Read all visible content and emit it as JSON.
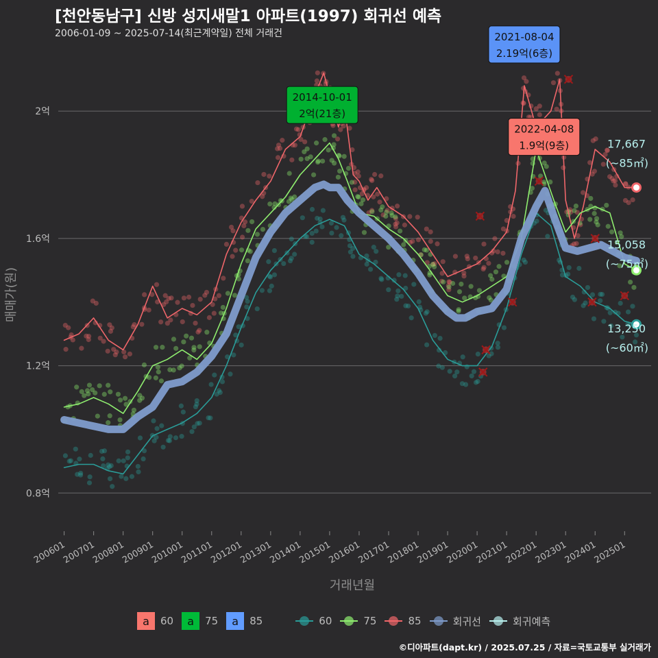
{
  "header": {
    "title": "[천안동남구] 신방 성지새말1 아파트(1997) 회귀선 예측",
    "subtitle": "2006-01-09 ~ 2025-07-14(최근계약일) 전체 거래건"
  },
  "footer": {
    "credit": "©디아파트(dapt.kr) / 2025.07.25 / 자료=국토교통부 실거래가"
  },
  "legend": {
    "label_keys": [
      {
        "key": "a",
        "label": "60",
        "color": "#f8766d"
      },
      {
        "key": "a",
        "label": "75",
        "color": "#00ba38"
      },
      {
        "key": "a",
        "label": "85",
        "color": "#619cff"
      }
    ],
    "line_keys": [
      {
        "label": "60",
        "color": "#2a9d99"
      },
      {
        "label": "75",
        "color": "#8fee6f"
      },
      {
        "label": "85",
        "color": "#f0666a"
      },
      {
        "label": "회귀선",
        "color": "#7f9ccc"
      },
      {
        "label": "회귀예측",
        "color": "#b8f0ee"
      }
    ]
  },
  "chart_data": {
    "type": "line",
    "xlabel": "거래년월",
    "ylabel": "매매가(원)",
    "x_range": [
      "2006-01",
      "2025-09"
    ],
    "ylim": [
      0.68,
      2.22
    ],
    "y_ticks": [
      {
        "value": 0.8,
        "label": "0.8억"
      },
      {
        "value": 1.2,
        "label": "1.2억"
      },
      {
        "value": 1.6,
        "label": "1.6억"
      },
      {
        "value": 2.0,
        "label": "2억"
      }
    ],
    "x_ticks": [
      "200601",
      "200701",
      "200801",
      "200901",
      "201001",
      "201101",
      "201201",
      "201301",
      "201401",
      "201501",
      "201601",
      "201701",
      "201801",
      "201901",
      "202001",
      "202101",
      "202201",
      "202301",
      "202401",
      "202501"
    ],
    "grid": true,
    "series": [
      {
        "name": "85",
        "color": "#f0666a",
        "x": [
          2006.0,
          2006.5,
          2007.0,
          2007.5,
          2008.0,
          2008.5,
          2009.0,
          2009.5,
          2010.0,
          2010.5,
          2011.0,
          2011.5,
          2012.0,
          2012.5,
          2013.0,
          2013.5,
          2014.0,
          2014.5,
          2014.8,
          2015.0,
          2015.3,
          2015.5,
          2015.8,
          2016.0,
          2016.3,
          2016.6,
          2017.0,
          2017.5,
          2018.0,
          2018.5,
          2019.0,
          2019.5,
          2020.0,
          2020.5,
          2021.0,
          2021.3,
          2021.6,
          2022.0,
          2022.5,
          2022.8,
          2023.0,
          2023.3,
          2023.6,
          2024.0,
          2024.5,
          2025.0,
          2025.4
        ],
        "y": [
          1.28,
          1.3,
          1.35,
          1.28,
          1.25,
          1.33,
          1.45,
          1.35,
          1.38,
          1.36,
          1.4,
          1.55,
          1.65,
          1.72,
          1.78,
          1.88,
          1.92,
          2.05,
          2.12,
          2.05,
          1.95,
          2.02,
          1.8,
          1.78,
          1.72,
          1.76,
          1.7,
          1.67,
          1.62,
          1.55,
          1.48,
          1.5,
          1.52,
          1.56,
          1.62,
          1.75,
          2.08,
          1.95,
          2.0,
          2.1,
          1.72,
          1.6,
          1.7,
          1.88,
          1.84,
          1.76,
          1.76
        ]
      },
      {
        "name": "75",
        "color": "#8fee6f",
        "x": [
          2006.0,
          2006.5,
          2007.0,
          2007.5,
          2008.0,
          2008.5,
          2009.0,
          2009.5,
          2010.0,
          2010.5,
          2011.0,
          2011.5,
          2012.0,
          2012.5,
          2013.0,
          2013.5,
          2014.0,
          2014.5,
          2015.0,
          2015.3,
          2015.6,
          2016.0,
          2016.5,
          2017.0,
          2017.5,
          2018.0,
          2018.4,
          2019.0,
          2019.5,
          2020.0,
          2020.5,
          2021.0,
          2021.5,
          2022.0,
          2022.3,
          2022.6,
          2023.0,
          2023.5,
          2024.0,
          2024.5,
          2025.0,
          2025.4
        ],
        "y": [
          1.07,
          1.08,
          1.1,
          1.08,
          1.05,
          1.12,
          1.2,
          1.22,
          1.25,
          1.22,
          1.27,
          1.38,
          1.52,
          1.63,
          1.68,
          1.73,
          1.8,
          1.85,
          1.9,
          1.85,
          1.78,
          1.68,
          1.67,
          1.63,
          1.6,
          1.55,
          1.5,
          1.42,
          1.4,
          1.42,
          1.45,
          1.48,
          1.6,
          1.88,
          1.8,
          1.72,
          1.62,
          1.68,
          1.7,
          1.68,
          1.52,
          1.5
        ]
      },
      {
        "name": "60",
        "color": "#2a9d99",
        "x": [
          2006.0,
          2006.5,
          2007.0,
          2007.5,
          2008.0,
          2008.5,
          2009.0,
          2009.5,
          2010.0,
          2010.5,
          2011.0,
          2011.5,
          2012.0,
          2012.5,
          2013.0,
          2013.5,
          2014.0,
          2014.5,
          2015.0,
          2015.5,
          2016.0,
          2016.5,
          2017.0,
          2017.5,
          2018.0,
          2018.5,
          2019.0,
          2019.5,
          2020.0,
          2020.5,
          2021.0,
          2021.5,
          2022.0,
          2022.5,
          2023.0,
          2023.5,
          2024.0,
          2024.5,
          2025.0,
          2025.4
        ],
        "y": [
          0.88,
          0.89,
          0.89,
          0.87,
          0.86,
          0.92,
          0.98,
          1.0,
          1.02,
          1.05,
          1.1,
          1.2,
          1.32,
          1.43,
          1.5,
          1.55,
          1.6,
          1.64,
          1.66,
          1.64,
          1.55,
          1.52,
          1.48,
          1.44,
          1.38,
          1.28,
          1.22,
          1.2,
          1.2,
          1.26,
          1.38,
          1.55,
          1.68,
          1.64,
          1.48,
          1.45,
          1.4,
          1.38,
          1.34,
          1.33
        ]
      },
      {
        "name": "회귀선",
        "color": "#7f9ccc",
        "x": [
          2006.0,
          2006.5,
          2007.0,
          2007.5,
          2008.0,
          2008.5,
          2009.0,
          2009.5,
          2010.0,
          2010.5,
          2011.0,
          2011.5,
          2012.0,
          2012.5,
          2013.0,
          2013.5,
          2014.0,
          2014.5,
          2014.8,
          2015.0,
          2015.3,
          2015.6,
          2016.0,
          2016.5,
          2017.0,
          2017.5,
          2018.0,
          2018.5,
          2019.0,
          2019.3,
          2019.6,
          2020.0,
          2020.5,
          2021.0,
          2021.5,
          2022.0,
          2022.3,
          2022.6,
          2023.0,
          2023.4,
          2023.8,
          2024.2,
          2024.6,
          2025.0,
          2025.4
        ],
        "y": [
          1.03,
          1.02,
          1.01,
          1.0,
          1.0,
          1.04,
          1.07,
          1.14,
          1.15,
          1.18,
          1.23,
          1.3,
          1.42,
          1.54,
          1.62,
          1.68,
          1.72,
          1.76,
          1.77,
          1.76,
          1.76,
          1.72,
          1.68,
          1.64,
          1.6,
          1.55,
          1.49,
          1.42,
          1.37,
          1.35,
          1.35,
          1.37,
          1.38,
          1.44,
          1.6,
          1.7,
          1.75,
          1.67,
          1.57,
          1.56,
          1.57,
          1.58,
          1.56,
          1.54,
          1.53
        ]
      }
    ],
    "current_labels": [
      {
        "x": 2025.4,
        "y": 1.76,
        "price": "17,667",
        "area": "(~85㎡)",
        "color": "#f0666a"
      },
      {
        "x": 2025.4,
        "y": 1.5,
        "price": "15,058",
        "area": "(~75㎡)",
        "color": "#8fee6f"
      },
      {
        "x": 2025.4,
        "y": 1.33,
        "price": "13,250",
        "area": "(~60㎡)",
        "color": "#2a9d99"
      }
    ],
    "max_annotations": [
      {
        "x": 2014.75,
        "y": 2.0,
        "date": "2014-10-01",
        "price": "2억(21층)",
        "fill": "#00b030"
      },
      {
        "x": 2021.6,
        "y": 2.19,
        "date": "2021-08-04",
        "price": "2.19억(6층)",
        "fill": "#5b93f7"
      },
      {
        "x": 2022.27,
        "y": 1.9,
        "date": "2022-04-08",
        "price": "1.9억(9층)",
        "fill": "#f8766d"
      }
    ],
    "cancelled_points": [
      {
        "x": 2020.1,
        "y": 1.67
      },
      {
        "x": 2020.3,
        "y": 1.25
      },
      {
        "x": 2020.2,
        "y": 1.18
      },
      {
        "x": 2021.2,
        "y": 1.4
      },
      {
        "x": 2022.1,
        "y": 1.78
      },
      {
        "x": 2023.1,
        "y": 2.1
      },
      {
        "x": 2023.9,
        "y": 1.4
      },
      {
        "x": 2024.0,
        "y": 1.6
      },
      {
        "x": 2025.0,
        "y": 1.42
      }
    ]
  }
}
